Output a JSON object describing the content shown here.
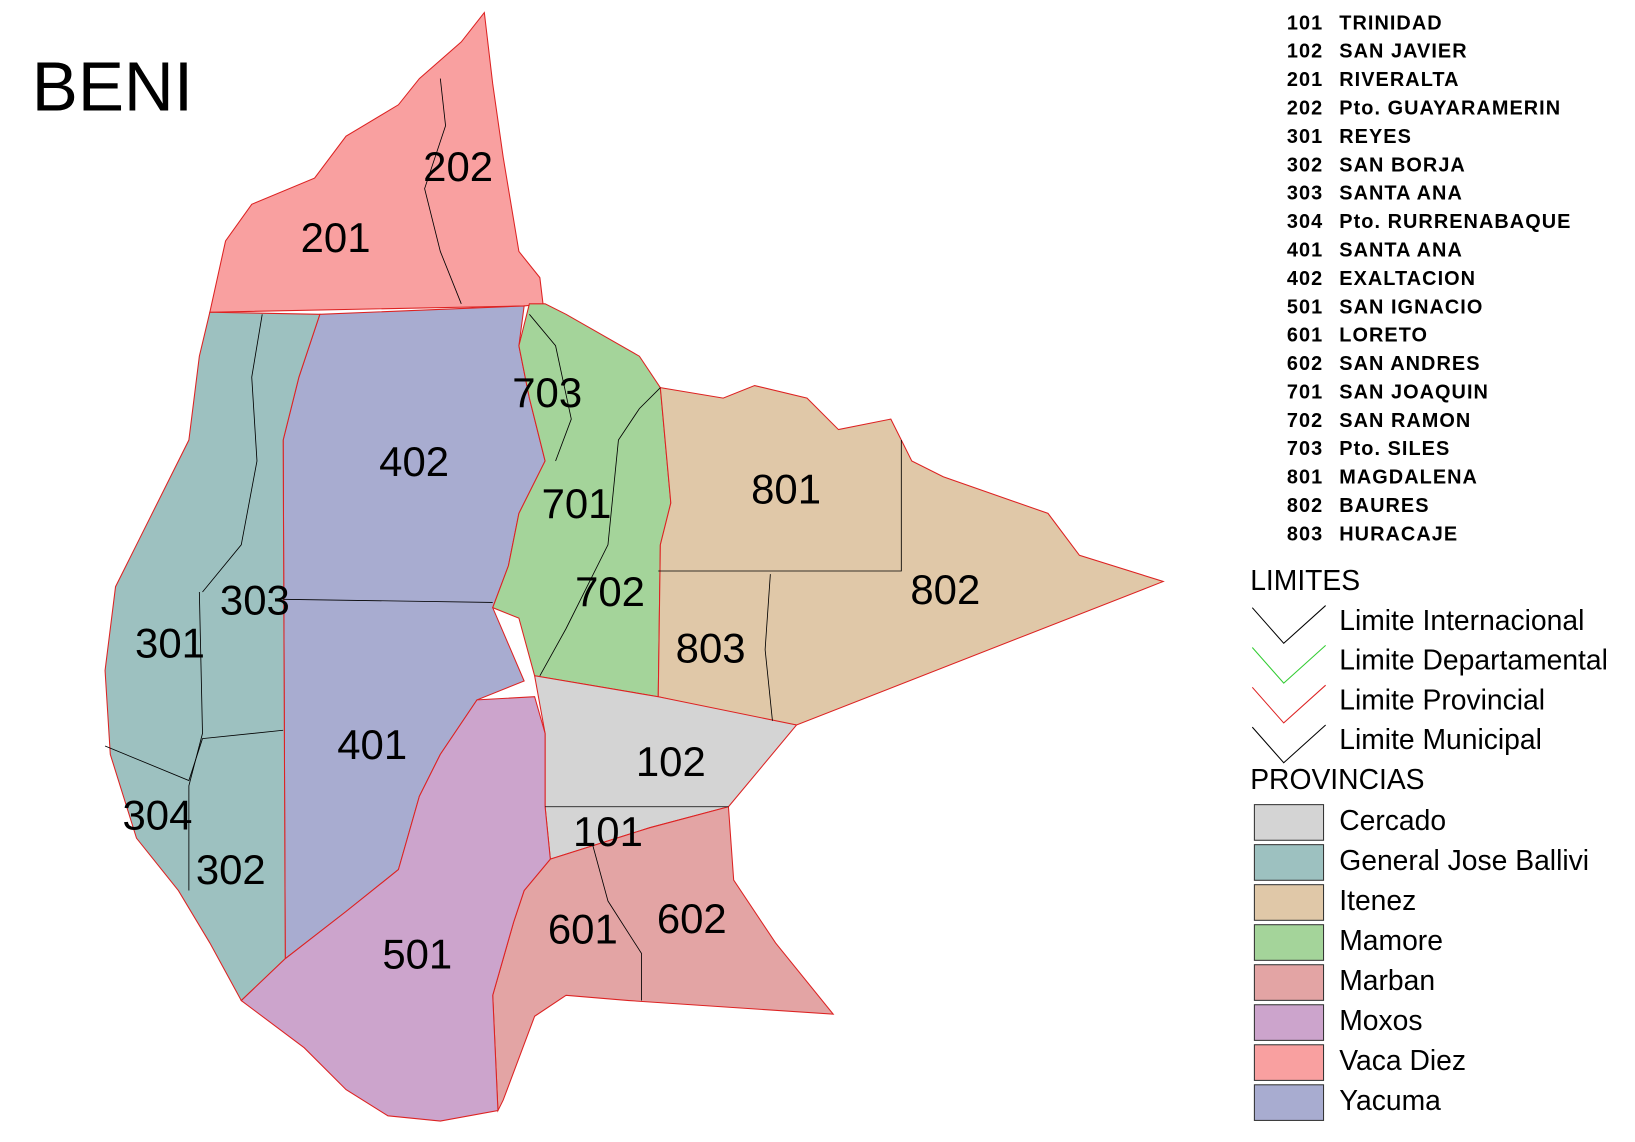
{
  "title": "BENI",
  "municipalities": [
    {
      "code": "101",
      "name": "TRINIDAD"
    },
    {
      "code": "102",
      "name": "SAN JAVIER"
    },
    {
      "code": "201",
      "name": "RIVERALTA"
    },
    {
      "code": "202",
      "name": "Pto. GUAYARAMERIN"
    },
    {
      "code": "301",
      "name": "REYES"
    },
    {
      "code": "302",
      "name": "SAN BORJA"
    },
    {
      "code": "303",
      "name": "SANTA ANA"
    },
    {
      "code": "304",
      "name": "Pto. RURRENABAQUE"
    },
    {
      "code": "401",
      "name": "SANTA ANA"
    },
    {
      "code": "402",
      "name": "EXALTACION"
    },
    {
      "code": "501",
      "name": "SAN IGNACIO"
    },
    {
      "code": "601",
      "name": "LORETO"
    },
    {
      "code": "602",
      "name": "SAN ANDRES"
    },
    {
      "code": "701",
      "name": "SAN JOAQUIN"
    },
    {
      "code": "702",
      "name": "SAN RAMON"
    },
    {
      "code": "703",
      "name": "Pto. SILES"
    },
    {
      "code": "801",
      "name": "MAGDALENA"
    },
    {
      "code": "802",
      "name": "BAURES"
    },
    {
      "code": "803",
      "name": "HURACAJE"
    }
  ],
  "limits": {
    "heading": "LIMITES",
    "items": [
      {
        "label": "Limite Internacional",
        "color": "#000000"
      },
      {
        "label": "Limite Departamental",
        "color": "#33cc33"
      },
      {
        "label": "Limite Provincial",
        "color": "#dd2222"
      },
      {
        "label": "Limite Municipal",
        "color": "#000000"
      }
    ]
  },
  "provinces": {
    "heading": "PROVINCIAS",
    "items": [
      {
        "name": "Cercado",
        "color": "#d4d4d4"
      },
      {
        "name": "General Jose Ballivi",
        "color": "#9dc1c0"
      },
      {
        "name": "Itenez",
        "color": "#e0c8a8"
      },
      {
        "name": "Mamore",
        "color": "#a4d49a"
      },
      {
        "name": "Marban",
        "color": "#e3a4a4"
      },
      {
        "name": "Moxos",
        "color": "#cca4cc"
      },
      {
        "name": "Vaca Diez",
        "color": "#f9a0a0"
      },
      {
        "name": "Yacuma",
        "color": "#a8acd0"
      }
    ]
  }
}
